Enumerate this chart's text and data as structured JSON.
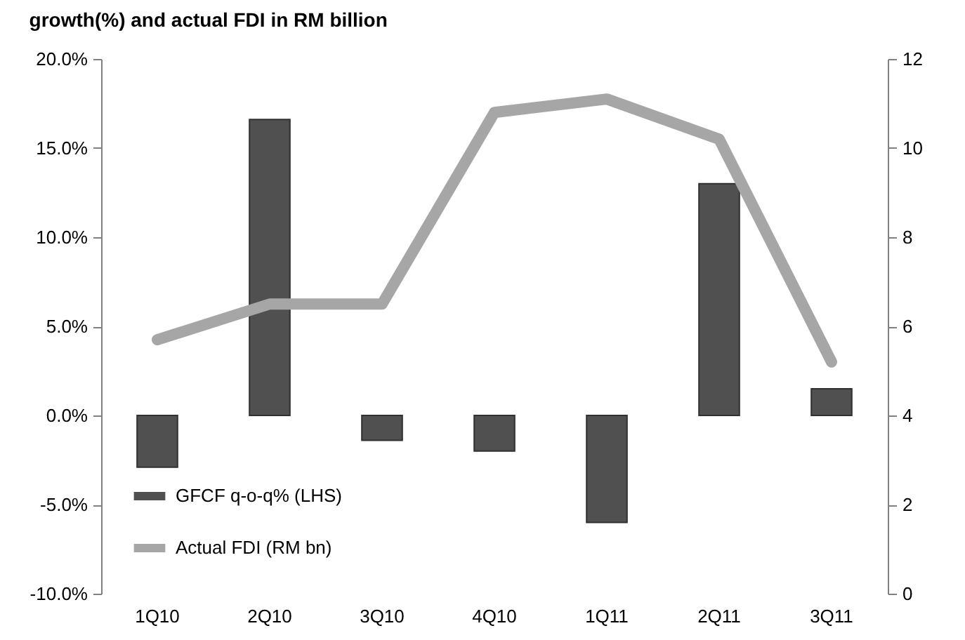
{
  "chart_data": {
    "type": "bar",
    "title": "growth(%) and actual FDI in RM billion",
    "categories": [
      "1Q10",
      "2Q10",
      "3Q10",
      "4Q10",
      "1Q11",
      "2Q11",
      "3Q11"
    ],
    "series": [
      {
        "name": "GFCF q-o-q% (LHS)",
        "color": "#505050",
        "values": [
          -2.9,
          16.6,
          -1.4,
          -2.0,
          -6.0,
          13.0,
          1.5
        ]
      },
      {
        "name": "Actual FDI (RM bn)",
        "type": "line",
        "axis": "y2",
        "color": "#a6a6a6",
        "values": [
          5.7,
          6.5,
          6.5,
          10.8,
          11.1,
          10.2,
          5.2
        ]
      }
    ],
    "ylim": [
      -10,
      20
    ],
    "yticks": [
      {
        "value": -10,
        "label": "-10.0%"
      },
      {
        "value": -5,
        "label": "-5.0%"
      },
      {
        "value": 0,
        "label": "0.0%"
      },
      {
        "value": 5,
        "label": "5.0%"
      },
      {
        "value": 10,
        "label": "10.0%"
      },
      {
        "value": 15,
        "label": "15.0%"
      },
      {
        "value": 20,
        "label": "20.0%"
      }
    ],
    "y2lim": [
      0,
      12
    ],
    "y2ticks": [
      0,
      2,
      4,
      6,
      8,
      10,
      12
    ],
    "legend": "bottom left",
    "grid": false
  }
}
